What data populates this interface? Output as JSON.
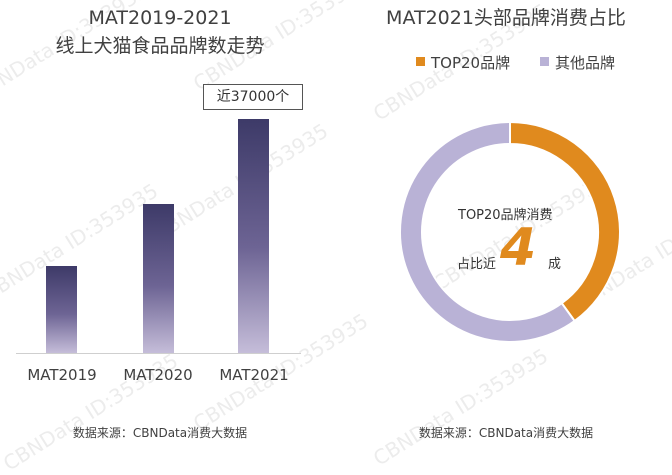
{
  "watermark": "CBNData ID:353935",
  "left_chart": {
    "title_line1": "MAT2019-2021",
    "title_line2": "线上犬猫食品品牌数走势",
    "callout": "近37000个",
    "source": "数据来源：CBNData消费大数据"
  },
  "right_chart": {
    "title": "MAT2021头部品牌消费占比",
    "center_line1": "TOP20品牌消费",
    "center_prefix": "占比近",
    "center_value": "4",
    "center_suffix": "成",
    "source": "数据来源：CBNData消费大数据"
  },
  "colors": {
    "accent": "#e08a1e",
    "other": "#b9b2d6",
    "bar_top": "#3d3a68"
  },
  "chart_data": [
    {
      "type": "bar",
      "title": "MAT2019-2021 线上犬猫食品品牌数走势",
      "categories": [
        "MAT2019",
        "MAT2020",
        "MAT2021"
      ],
      "values": [
        13800,
        23500,
        37000
      ],
      "ylim": [
        0,
        38500
      ],
      "data_labels": [
        "",
        "",
        "近37000个"
      ],
      "grid": false
    },
    {
      "type": "pie",
      "title": "MAT2021头部品牌消费占比",
      "donut": true,
      "legend_position": "top",
      "slices": [
        {
          "label": "TOP20品牌",
          "value": 0.4,
          "color": "#e08a1e"
        },
        {
          "label": "其他品牌",
          "value": 0.6,
          "color": "#b9b2d6"
        }
      ]
    }
  ]
}
